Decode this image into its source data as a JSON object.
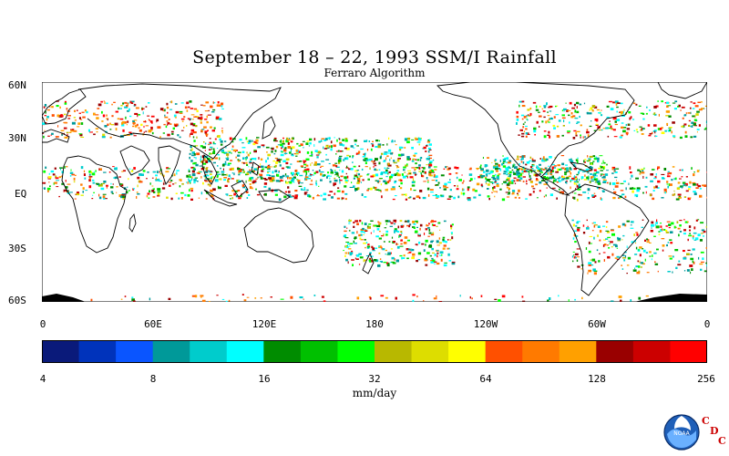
{
  "title": "September 18 – 22, 1993 SSM/I Rainfall",
  "subtitle": "Ferraro Algorithm",
  "lat_labels": [
    "60N",
    "30N",
    "EQ",
    "30S",
    "60S"
  ],
  "lon_labels": [
    "0",
    "60E",
    "120E",
    "180",
    "120W",
    "60W",
    "0"
  ],
  "colorbar": {
    "tick_labels": [
      "4",
      "8",
      "16",
      "32",
      "64",
      "128",
      "256"
    ],
    "units": "mm/day",
    "colors": [
      "#0a1a7a",
      "#0033bb",
      "#0a55ff",
      "#009999",
      "#00cccc",
      "#00ffff",
      "#008c00",
      "#00c000",
      "#00ff00",
      "#b8b800",
      "#dddd00",
      "#ffff00",
      "#ff5000",
      "#ff7a00",
      "#ffa000",
      "#990000",
      "#cc0000",
      "#ff0000"
    ]
  },
  "logo": {
    "name": "NOAA",
    "letters": [
      "C",
      "D",
      "C"
    ]
  }
}
